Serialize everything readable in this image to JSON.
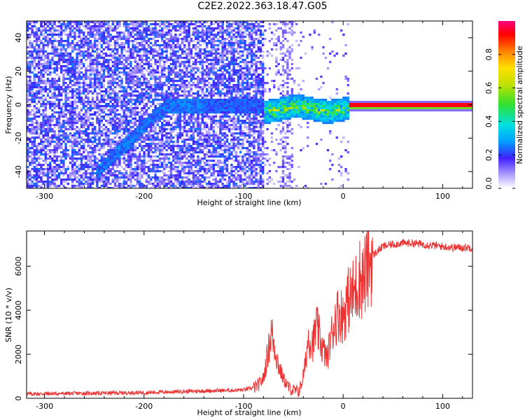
{
  "title": "C2E2.2022.363.18.47.G05",
  "chart_data": [
    {
      "type": "heatmap",
      "xlabel": "Height of straight line (km)",
      "ylabel": "Frequency (Hz)",
      "xlim": [
        -318,
        130
      ],
      "ylim": [
        -50,
        50
      ],
      "xticks": [
        -300,
        -200,
        -100,
        0,
        100
      ],
      "yticks": [
        -40,
        -20,
        0,
        20,
        40
      ],
      "colorbar": {
        "label": "Normalized spectral amplitude",
        "ticks": [
          "0.0",
          "0.2",
          "0.4",
          "0.6",
          "0.8"
        ],
        "range": [
          0,
          1
        ]
      },
      "features": [
        {
          "description": "broad low-amplitude noise",
          "x_range": [
            -318,
            -80
          ],
          "y_range": [
            -50,
            50
          ],
          "amplitude": [
            0.05,
            0.25
          ]
        },
        {
          "description": "diagonal weak streak",
          "x_points": [
            [
              -240,
              -35
            ],
            [
              -210,
              -18
            ],
            [
              -180,
              -5
            ],
            [
              -150,
              0
            ]
          ],
          "amplitude": 0.25
        },
        {
          "description": "signal emerging",
          "x_range": [
            -100,
            5
          ],
          "y_center": -2,
          "amplitude": [
            0.3,
            0.7
          ]
        },
        {
          "description": "strong carrier line",
          "x_range": [
            5,
            130
          ],
          "y_center": 0,
          "amplitude": 0.95
        }
      ]
    },
    {
      "type": "line",
      "xlabel": "Height of straight line (km)",
      "ylabel": "SNR (10 * v/v)",
      "xlim": [
        -318,
        130
      ],
      "ylim": [
        0,
        7600
      ],
      "xticks": [
        -300,
        -200,
        -100,
        0,
        100
      ],
      "yticks": [
        0,
        2000,
        4000,
        6000
      ],
      "color": "#ee3333",
      "series": [
        {
          "x": [
            -318,
            -250,
            -200,
            -150,
            -100,
            -90,
            -85,
            -80,
            -75,
            -72,
            -68,
            -65,
            -60,
            -55,
            -50,
            -45,
            -42,
            -38,
            -35,
            -30,
            -27,
            -24,
            -20,
            -16,
            -12,
            -8,
            -4,
            0,
            4,
            8,
            12,
            16,
            20,
            25,
            30,
            40,
            50,
            60,
            70,
            80,
            90,
            100,
            110,
            120,
            130
          ],
          "y": [
            200,
            230,
            260,
            320,
            380,
            480,
            600,
            900,
            2200,
            3000,
            2200,
            1500,
            900,
            500,
            350,
            300,
            600,
            1500,
            2800,
            2500,
            3300,
            2800,
            2200,
            1800,
            2800,
            3600,
            3900,
            3700,
            4400,
            4600,
            4900,
            5500,
            5400,
            6000,
            6500,
            6900,
            7000,
            7050,
            7050,
            7000,
            6950,
            6900,
            6850,
            6850,
            6850
          ]
        }
      ]
    }
  ]
}
